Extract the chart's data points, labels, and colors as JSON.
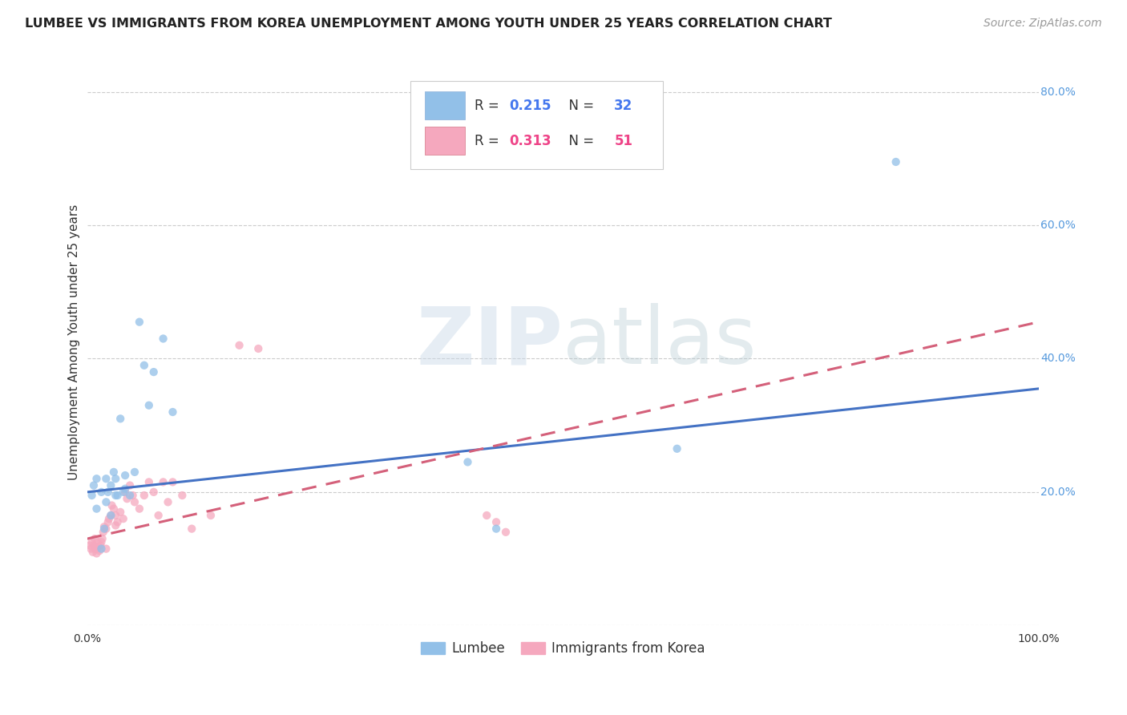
{
  "title": "LUMBEE VS IMMIGRANTS FROM KOREA UNEMPLOYMENT AMONG YOUTH UNDER 25 YEARS CORRELATION CHART",
  "source": "Source: ZipAtlas.com",
  "ylabel": "Unemployment Among Youth under 25 years",
  "xlim": [
    0.0,
    1.0
  ],
  "ylim": [
    0.0,
    0.85
  ],
  "legend_labels": [
    "Lumbee",
    "Immigrants from Korea"
  ],
  "lumbee_R": "0.215",
  "lumbee_N": "32",
  "korea_R": "0.313",
  "korea_N": "51",
  "lumbee_color": "#92C0E8",
  "korea_color": "#F5A8BE",
  "lumbee_line_color": "#4472C4",
  "korea_line_color": "#D4607A",
  "background_color": "#FFFFFF",
  "grid_color": "#CCCCCC",
  "watermark_zip": "ZIP",
  "watermark_atlas": "atlas",
  "lumbee_x": [
    0.005,
    0.007,
    0.01,
    0.01,
    0.015,
    0.015,
    0.018,
    0.02,
    0.02,
    0.022,
    0.025,
    0.025,
    0.028,
    0.03,
    0.03,
    0.032,
    0.035,
    0.038,
    0.04,
    0.04,
    0.045,
    0.05,
    0.055,
    0.06,
    0.065,
    0.07,
    0.08,
    0.09,
    0.4,
    0.43,
    0.62,
    0.85
  ],
  "lumbee_y": [
    0.195,
    0.21,
    0.175,
    0.22,
    0.115,
    0.2,
    0.145,
    0.185,
    0.22,
    0.2,
    0.165,
    0.21,
    0.23,
    0.195,
    0.22,
    0.195,
    0.31,
    0.2,
    0.205,
    0.225,
    0.195,
    0.23,
    0.455,
    0.39,
    0.33,
    0.38,
    0.43,
    0.32,
    0.245,
    0.145,
    0.265,
    0.695
  ],
  "korea_x": [
    0.003,
    0.004,
    0.005,
    0.006,
    0.007,
    0.008,
    0.008,
    0.009,
    0.01,
    0.01,
    0.011,
    0.012,
    0.013,
    0.014,
    0.015,
    0.016,
    0.017,
    0.018,
    0.02,
    0.02,
    0.022,
    0.023,
    0.025,
    0.026,
    0.028,
    0.03,
    0.03,
    0.032,
    0.035,
    0.038,
    0.04,
    0.042,
    0.045,
    0.048,
    0.05,
    0.055,
    0.06,
    0.065,
    0.07,
    0.075,
    0.08,
    0.085,
    0.09,
    0.1,
    0.11,
    0.13,
    0.16,
    0.18,
    0.42,
    0.43,
    0.44
  ],
  "korea_y": [
    0.12,
    0.115,
    0.125,
    0.11,
    0.12,
    0.115,
    0.13,
    0.118,
    0.108,
    0.115,
    0.125,
    0.118,
    0.112,
    0.12,
    0.125,
    0.13,
    0.14,
    0.148,
    0.115,
    0.145,
    0.155,
    0.16,
    0.165,
    0.18,
    0.175,
    0.15,
    0.165,
    0.155,
    0.17,
    0.16,
    0.2,
    0.19,
    0.21,
    0.195,
    0.185,
    0.175,
    0.195,
    0.215,
    0.2,
    0.165,
    0.215,
    0.185,
    0.215,
    0.195,
    0.145,
    0.165,
    0.42,
    0.415,
    0.165,
    0.155,
    0.14
  ],
  "lumbee_line_x0": 0.0,
  "lumbee_line_y0": 0.2,
  "lumbee_line_x1": 1.0,
  "lumbee_line_y1": 0.355,
  "korea_line_x0": 0.0,
  "korea_line_y0": 0.13,
  "korea_line_x1": 1.0,
  "korea_line_y1": 0.455,
  "title_fontsize": 11.5,
  "source_fontsize": 10,
  "axis_label_fontsize": 11,
  "tick_fontsize": 10,
  "marker_size": 55,
  "marker_alpha": 0.75,
  "line_width": 2.2
}
